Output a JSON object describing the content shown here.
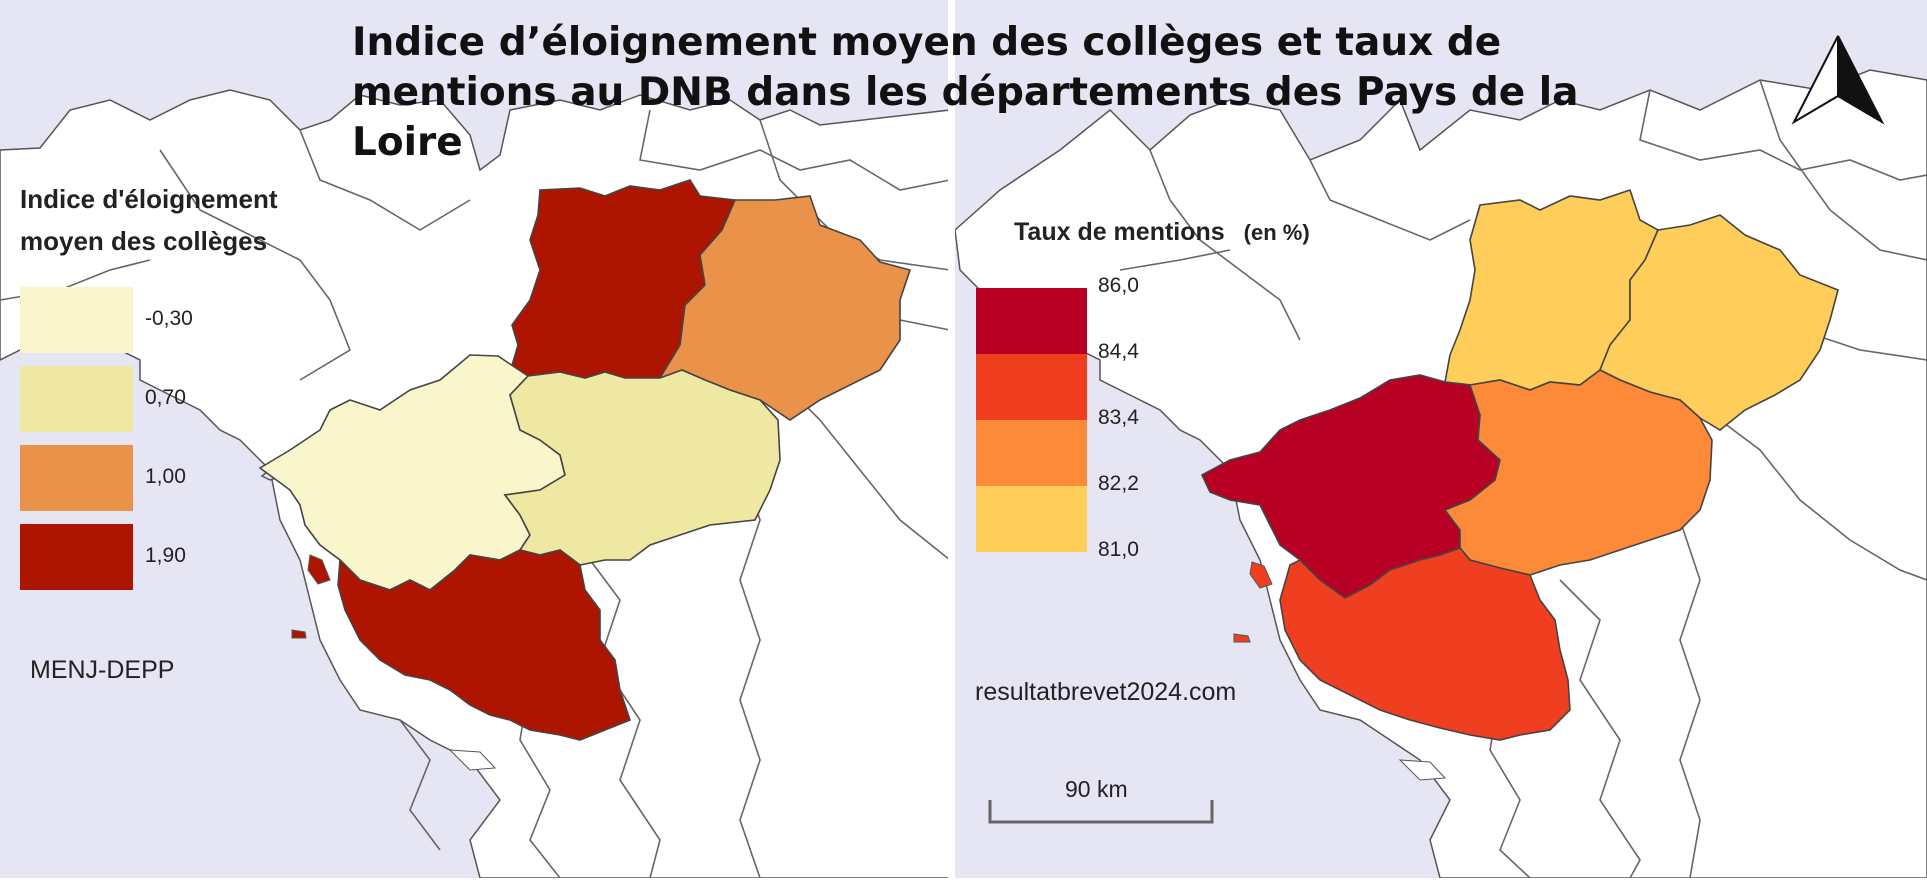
{
  "title": "Indice d’éloignement moyen des collèges et taux de mentions au DNB dans les départements des Pays de la Loire",
  "left_map": {
    "legend_title_line1": "Indice d'éloignement",
    "legend_title_line2": "moyen des collèges",
    "legend": [
      {
        "label": "-0,30",
        "color": "#faf6cc"
      },
      {
        "label": "0,70",
        "color": "#efe8a2"
      },
      {
        "label": "1,00",
        "color": "#ea924a"
      },
      {
        "label": "1,90",
        "color": "#ae1500"
      }
    ],
    "source": "MENJ-DEPP",
    "departments": {
      "mayenne": {
        "color": "#ae1500"
      },
      "sarthe": {
        "color": "#ea924a"
      },
      "loire_atlantique": {
        "color": "#faf6cc"
      },
      "maine_et_loire": {
        "color": "#efe8a2"
      },
      "vendee": {
        "color": "#ae1500"
      }
    }
  },
  "right_map": {
    "legend_title": "Taux  de mentions",
    "legend_unit": "(en %)",
    "legend_colors": [
      "#b80024",
      "#ef3f20",
      "#fc8a38",
      "#fecd5a"
    ],
    "legend_breaks": [
      "86,0",
      "84,4",
      "83,4",
      "82,2",
      "81,0"
    ],
    "source": "resultatbrevet2024.com",
    "scale_label": "90 km",
    "departments": {
      "mayenne": {
        "color": "#fecd5a"
      },
      "sarthe": {
        "color": "#fecd5a"
      },
      "loire_atlantique": {
        "color": "#b80024"
      },
      "maine_et_loire": {
        "color": "#fc8a38"
      },
      "vendee": {
        "color": "#ef3f20"
      }
    }
  },
  "colors": {
    "sea": "#e5e5f3",
    "land": "#ffffff",
    "border": "#555555"
  }
}
